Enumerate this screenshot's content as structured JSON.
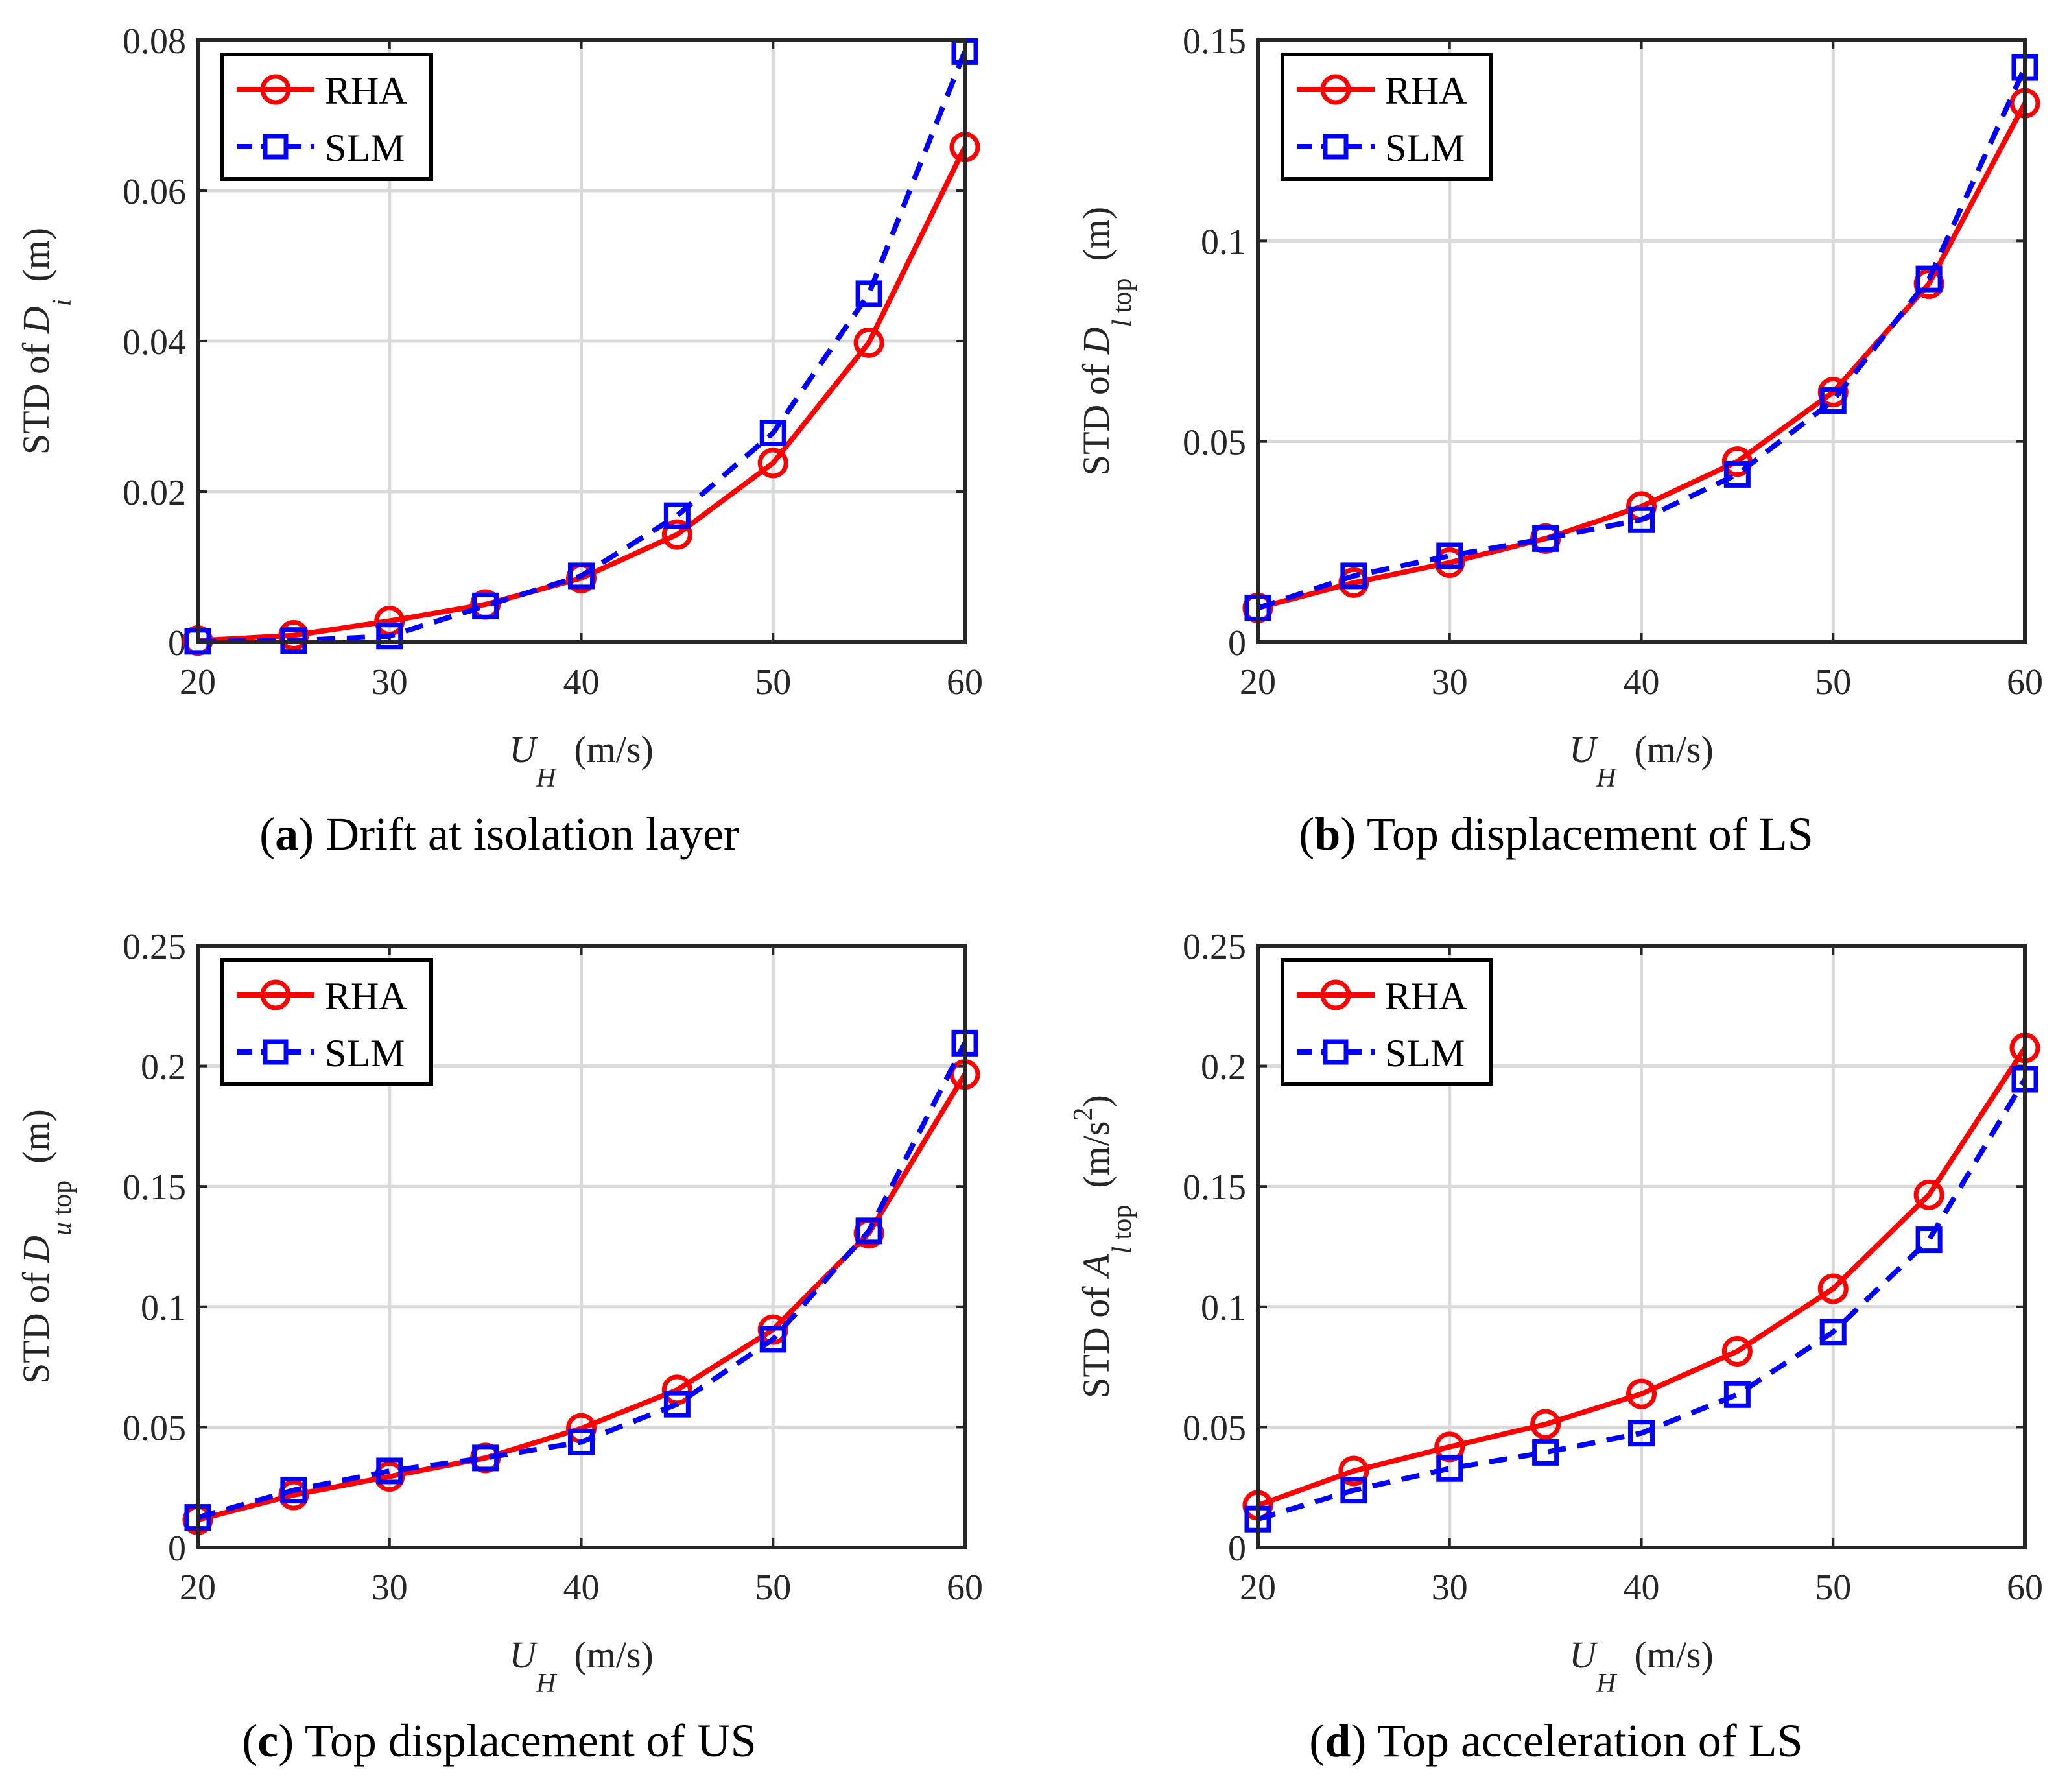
{
  "colors": {
    "rha": "#ff0000",
    "slm": "#0000ff",
    "grid": "#d9d9d9",
    "axis": "#262626"
  },
  "legend": {
    "rha": "RHA",
    "slm": "SLM"
  },
  "x_label": {
    "symbol": "U",
    "sub": "H",
    "unit": "(m/s)"
  },
  "chart_data": [
    {
      "type": "line",
      "caption_letter": "a",
      "caption_text": "Drift at isolation layer",
      "ylabel": {
        "prefix": "STD  of ",
        "symbol": "D",
        "sub": "i",
        "sub_italic": true,
        "unit": "(m)"
      },
      "x": [
        20,
        25,
        30,
        35,
        40,
        45,
        50,
        55,
        60
      ],
      "xlim": [
        20,
        60
      ],
      "ylim": [
        0,
        0.08
      ],
      "xticks": [
        "20",
        "30",
        "40",
        "50",
        "60"
      ],
      "yticks": [
        "0",
        "0.02",
        "0.04",
        "0.06",
        "0.08"
      ],
      "grid": true,
      "legend_position": "top-left",
      "series": [
        {
          "name": "RHA",
          "marker": "circle",
          "style": "solid",
          "values": [
            0.0002,
            0.0009,
            0.0028,
            0.005,
            0.0085,
            0.0143,
            0.0238,
            0.0398,
            0.0658
          ]
        },
        {
          "name": "SLM",
          "marker": "square",
          "style": "dashed",
          "values": [
            0.0001,
            0.0002,
            0.0008,
            0.0048,
            0.0088,
            0.0168,
            0.0278,
            0.0463,
            0.0785
          ]
        }
      ]
    },
    {
      "type": "line",
      "caption_letter": "b",
      "caption_text": "Top displacement of LS",
      "ylabel": {
        "prefix": "STD  of ",
        "symbol": "D",
        "sub": "l",
        "sub_italic": true,
        "sub2": " top",
        "unit": "(m)"
      },
      "x": [
        20,
        25,
        30,
        35,
        40,
        45,
        50,
        55,
        60
      ],
      "xlim": [
        20,
        60
      ],
      "ylim": [
        0,
        0.15
      ],
      "xticks": [
        "20",
        "30",
        "40",
        "50",
        "60"
      ],
      "yticks": [
        "0",
        "0.05",
        "0.1",
        "0.15"
      ],
      "grid": true,
      "legend_position": "top-left",
      "series": [
        {
          "name": "RHA",
          "marker": "circle",
          "style": "solid",
          "values": [
            0.0085,
            0.0148,
            0.0198,
            0.0258,
            0.0338,
            0.045,
            0.0623,
            0.0893,
            0.1343
          ]
        },
        {
          "name": "SLM",
          "marker": "square",
          "style": "dashed",
          "values": [
            0.0085,
            0.0165,
            0.0215,
            0.0258,
            0.0305,
            0.0418,
            0.0602,
            0.0905,
            0.1432
          ]
        }
      ]
    },
    {
      "type": "line",
      "caption_letter": "c",
      "caption_text": "Top displacement of US",
      "ylabel": {
        "prefix": "STD  of ",
        "symbol": "D",
        "sub": "u",
        "sub_italic": true,
        "sub2": " top",
        "unit": "(m)"
      },
      "x": [
        20,
        25,
        30,
        35,
        40,
        45,
        50,
        55,
        60
      ],
      "xlim": [
        20,
        60
      ],
      "ylim": [
        0,
        0.25
      ],
      "xticks": [
        "20",
        "30",
        "40",
        "50",
        "60"
      ],
      "yticks": [
        "0",
        "0.05",
        "0.1",
        "0.15",
        "0.2",
        "0.25"
      ],
      "grid": true,
      "legend_position": "top-left",
      "series": [
        {
          "name": "RHA",
          "marker": "circle",
          "style": "solid",
          "values": [
            0.0115,
            0.0218,
            0.0295,
            0.0372,
            0.0495,
            0.0655,
            0.0905,
            0.1305,
            0.1965
          ]
        },
        {
          "name": "SLM",
          "marker": "square",
          "style": "dashed",
          "values": [
            0.0125,
            0.0238,
            0.0318,
            0.0372,
            0.0438,
            0.0595,
            0.0865,
            0.1315,
            0.2095
          ]
        }
      ]
    },
    {
      "type": "line",
      "caption_letter": "d",
      "caption_text": "Top acceleration of LS",
      "ylabel": {
        "prefix": "STD  of ",
        "symbol": "A",
        "sub": "l",
        "sub_italic": true,
        "sub2": " top",
        "unit": "(m/s",
        "sup": "2",
        "unit_end": ")"
      },
      "x": [
        20,
        25,
        30,
        35,
        40,
        45,
        50,
        55,
        60
      ],
      "xlim": [
        20,
        60
      ],
      "ylim": [
        0,
        0.25
      ],
      "xticks": [
        "20",
        "30",
        "40",
        "50",
        "60"
      ],
      "yticks": [
        "0",
        "0.05",
        "0.1",
        "0.15",
        "0.2",
        "0.25"
      ],
      "grid": true,
      "legend_position": "top-left",
      "series": [
        {
          "name": "RHA",
          "marker": "circle",
          "style": "solid",
          "values": [
            0.0175,
            0.0318,
            0.0418,
            0.0512,
            0.0638,
            0.0815,
            0.1075,
            0.1465,
            0.2075
          ]
        },
        {
          "name": "SLM",
          "marker": "square",
          "style": "dashed",
          "values": [
            0.0118,
            0.0238,
            0.0328,
            0.0395,
            0.0475,
            0.0635,
            0.0895,
            0.1278,
            0.1945
          ]
        }
      ]
    }
  ]
}
